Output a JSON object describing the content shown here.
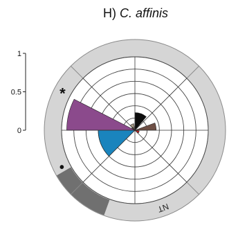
{
  "chart_data": {
    "type": "polar-bar",
    "title_prefix": "H) ",
    "title_species": "C. affinis",
    "r_axis": {
      "ticks": [
        0,
        0.5,
        1
      ],
      "tick_labels": [
        "0",
        "0.5",
        "1"
      ],
      "range": [
        0,
        1
      ]
    },
    "rings": 6,
    "spokes_deg": [
      0,
      45,
      90,
      135,
      180,
      225,
      270,
      315
    ],
    "sectors": [
      {
        "name": "purple",
        "color": "#8b4a8c",
        "start_deg": 270,
        "end_deg": 297,
        "value": 0.93
      },
      {
        "name": "blue",
        "color": "#1a84bd",
        "start_deg": 225,
        "end_deg": 270,
        "value": 0.5
      },
      {
        "name": "black",
        "color": "#0d0d0d",
        "start_deg": 0,
        "end_deg": 40,
        "value": 0.24
      },
      {
        "name": "brown",
        "color": "#6e4f45",
        "start_deg": 70,
        "end_deg": 90,
        "value": 0.29
      },
      {
        "name": "tan",
        "color": "#a89a88",
        "start_deg": 315,
        "end_deg": 350,
        "value": 0.09
      },
      {
        "name": "small-brown",
        "color": "#6e4f45",
        "start_deg": 300,
        "end_deg": 330,
        "value": 0.05
      },
      {
        "name": "red",
        "color": "#d22020",
        "start_deg": 100,
        "end_deg": 130,
        "value": 0.06
      }
    ],
    "outer_band": {
      "color": "#d5d5d5"
    },
    "band_segments": [
      {
        "name": "dark-gray-arc",
        "color": "#707070",
        "start_deg": 200,
        "end_deg": 240
      }
    ],
    "markers": [
      {
        "name": "asterisk",
        "text": "*",
        "angle_deg": 298
      },
      {
        "name": "dot",
        "text": "•",
        "angle_deg": 243
      }
    ],
    "band_label": {
      "text": "NT",
      "angle_deg": 160
    }
  }
}
